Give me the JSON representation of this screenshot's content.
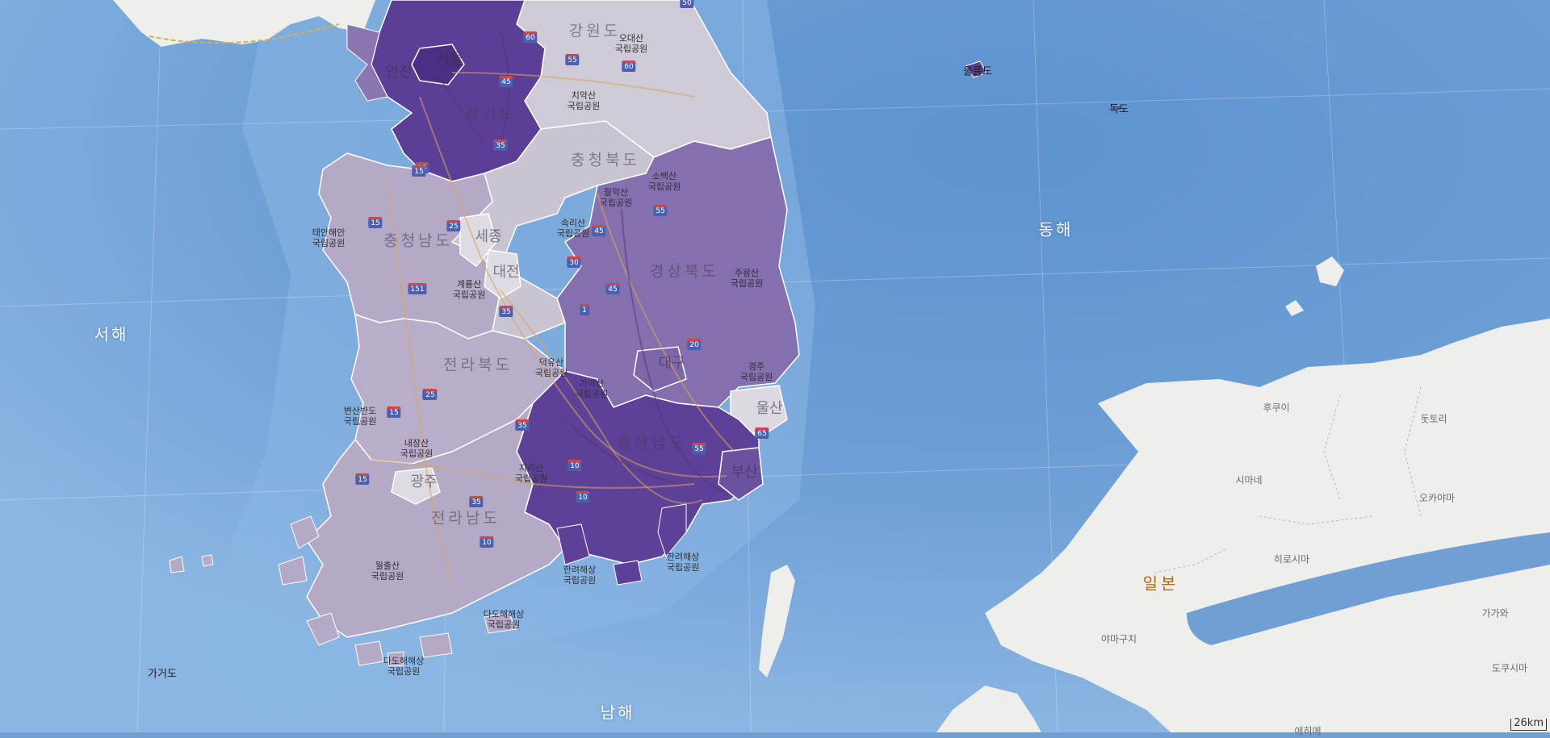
{
  "map": {
    "seas": {
      "east": "동해",
      "west": "서해",
      "south": "남해"
    },
    "provinces": {
      "gangwon": "강원도",
      "gyeonggi": "경기도",
      "chungbuk": "충청북도",
      "chungnam": "충청남도",
      "gyeongbuk": "경상북도",
      "jeonbuk": "전라북도",
      "gyeongnam": "경상남도",
      "jeonnam": "전라남도",
      "seoul": "서울",
      "incheon": "인천",
      "sejong": "세종",
      "daejeon": "대전",
      "daegu": "대구",
      "ulsan": "울산",
      "busan": "부산",
      "gwangju": "광주"
    },
    "parks": {
      "odaesan": "오대산\n국립공원",
      "chiaksan": "치악산\n국립공원",
      "sobaeksan": "소백산\n국립공원",
      "woraksan": "월악산\n국립공원",
      "songnisan": "속리산\n국립공원",
      "taean": "태안해안\n국립공원",
      "gyeryongsan": "계룡산\n국립공원",
      "juwangsan": "주왕산\n국립공원",
      "gyeongju": "경주\n국립공원",
      "gayasan": "가야산\n국립공원",
      "deogyusan": "덕유산\n국립공원",
      "byeonsanbando": "변산반도\n국립공원",
      "naejangsan": "내장산\n국립공원",
      "jirisan": "지리산\n국립공원",
      "hallyeo": "한려해상\n국립공원",
      "hallyeo2": "한려해상\n국립공원",
      "wolchulsan": "월출산\n국립공원",
      "dadohae": "다도해해상\n국립공원",
      "dadohae2": "다도해해상\n국립공원"
    },
    "islands": {
      "ulleung": "울릉도",
      "dokdo": "독도",
      "gageo": "가거도"
    },
    "japan": {
      "country": "일본",
      "cities": {
        "hukui": "후쿠이",
        "tottori": "돗토리",
        "shimane": "시마네",
        "okayama": "오카야마",
        "hiroshima": "히로시마",
        "kagawa": "가가와",
        "yamaguchi": "야마구치",
        "tokushima": "도쿠시마",
        "ehime": "에히메"
      }
    },
    "highways": [
      "60",
      "55",
      "60",
      "50",
      "45",
      "35",
      "15",
      "55",
      "45",
      "30",
      "25",
      "35",
      "45",
      "15",
      "151",
      "20",
      "35",
      "25",
      "15",
      "65",
      "10",
      "10",
      "35",
      "15",
      "55",
      "10",
      "25",
      "15",
      "1"
    ],
    "scale_label": "26km",
    "colors": {
      "sea": "#6f9fd4",
      "sea_light": "#8ab4e0",
      "land_japan": "#eeeeea",
      "choropleth_dark": "#5b3f97",
      "choropleth_mid": "#7d67a8",
      "choropleth_light": "#b3a9c6",
      "choropleth_pale": "#d6d2dd",
      "road": "#d8a65a"
    }
  }
}
